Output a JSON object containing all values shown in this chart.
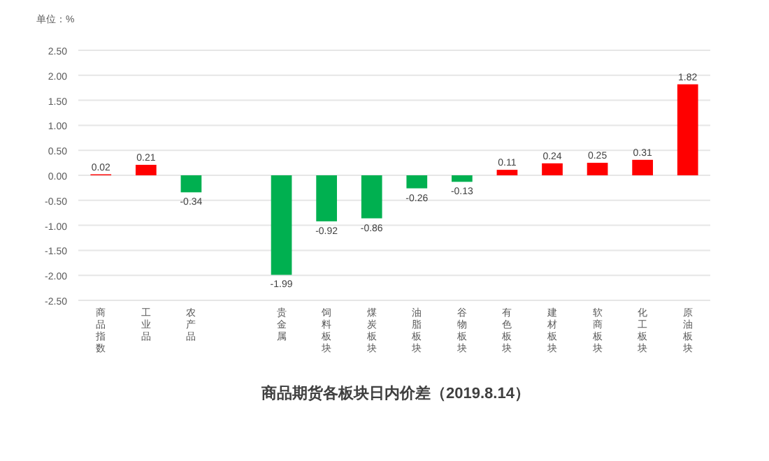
{
  "chart_data": {
    "type": "bar",
    "title": "商品期货各板块日内价差（2019.8.14）",
    "ylabel": "单位：%",
    "categories": [
      "商品指数",
      "工业品",
      "农产品",
      null,
      "贵金属",
      "饲料板块",
      "煤炭板块",
      "油脂板块",
      "谷物板块",
      "有色板块",
      "建材板块",
      "软商板块",
      "化工板块",
      "原油板块"
    ],
    "values": [
      0.02,
      0.21,
      -0.34,
      null,
      -1.99,
      -0.92,
      -0.86,
      -0.26,
      -0.13,
      0.11,
      0.24,
      0.25,
      0.31,
      1.82
    ],
    "colors": [
      "#ff0000",
      "#ff0000",
      "#00b050",
      null,
      "#00b050",
      "#00b050",
      "#00b050",
      "#00b050",
      "#00b050",
      "#ff0000",
      "#ff0000",
      "#ff0000",
      "#ff0000",
      "#ff0000"
    ],
    "ylim": [
      -2.5,
      2.5
    ],
    "yticks": [
      {
        "value": -2.5,
        "label": "-2.50"
      },
      {
        "value": -2,
        "label": "-2.00"
      },
      {
        "value": -1.5,
        "label": "-1.50"
      },
      {
        "value": -1,
        "label": "-1.00"
      },
      {
        "value": -0.5,
        "label": "-0.50"
      },
      {
        "value": 0,
        "label": "0.00"
      },
      {
        "value": 0.5,
        "label": "0.50"
      },
      {
        "value": 1,
        "label": "1.00"
      },
      {
        "value": 1.5,
        "label": "1.50"
      },
      {
        "value": 2,
        "label": "2.00"
      },
      {
        "value": 2.5,
        "label": "2.50"
      }
    ],
    "grid": "y",
    "data_labels": true
  }
}
